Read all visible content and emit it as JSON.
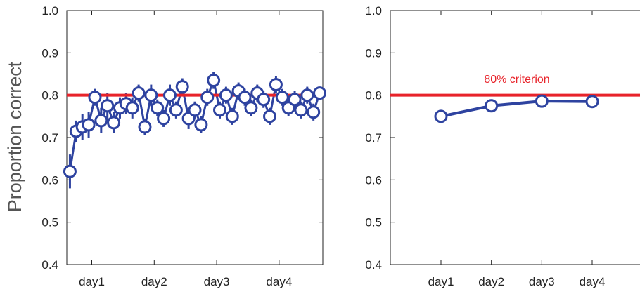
{
  "colors": {
    "data": "#2e43a0",
    "criterion": "#e8232a",
    "axis": "#222222"
  },
  "chart_data": [
    {
      "type": "line",
      "title": "",
      "xlabel": "",
      "ylabel": "Proportion correct",
      "ylim": [
        0.4,
        1.0
      ],
      "yticks": [
        "0.4",
        "0.5",
        "0.6",
        "0.7",
        "0.8",
        "0.9",
        "1.0"
      ],
      "xlim": [
        0.5,
        41.5
      ],
      "xticks": [
        {
          "x": 4.5,
          "label": "day1"
        },
        {
          "x": 14.5,
          "label": "day2"
        },
        {
          "x": 24.5,
          "label": "day3"
        },
        {
          "x": 34.5,
          "label": "day4"
        }
      ],
      "grid": false,
      "reference_line": {
        "y": 0.8
      },
      "series": [
        {
          "x": [
            1,
            2,
            3,
            4,
            5,
            6,
            7,
            8,
            9,
            10,
            11,
            12,
            13,
            14,
            15,
            16,
            17,
            18,
            19,
            20,
            21,
            22,
            23,
            24,
            25,
            26,
            27,
            28,
            29,
            30,
            31,
            32,
            33,
            34,
            35,
            36,
            37,
            38,
            39,
            40,
            41
          ],
          "values": [
            0.62,
            0.715,
            0.725,
            0.73,
            0.795,
            0.74,
            0.775,
            0.735,
            0.77,
            0.78,
            0.77,
            0.805,
            0.725,
            0.8,
            0.77,
            0.745,
            0.8,
            0.765,
            0.82,
            0.745,
            0.765,
            0.73,
            0.795,
            0.835,
            0.765,
            0.8,
            0.75,
            0.81,
            0.795,
            0.77,
            0.805,
            0.79,
            0.75,
            0.825,
            0.795,
            0.77,
            0.79,
            0.765,
            0.8,
            0.76,
            0.805
          ],
          "error": [
            0.04,
            0.025,
            0.03,
            0.03,
            0.02,
            0.03,
            0.03,
            0.025,
            0.025,
            0.025,
            0.025,
            0.02,
            0.02,
            0.025,
            0.02,
            0.02,
            0.025,
            0.02,
            0.02,
            0.025,
            0.02,
            0.02,
            0.02,
            0.02,
            0.02,
            0.02,
            0.02,
            0.02,
            0.02,
            0.02,
            0.02,
            0.02,
            0.02,
            0.02,
            0.02,
            0.02,
            0.02,
            0.02,
            0.02,
            0.02,
            0.015
          ]
        }
      ]
    },
    {
      "type": "line",
      "title": "",
      "xlabel": "",
      "ylabel": "",
      "ylim": [
        0.4,
        1.0
      ],
      "yticks": [
        "0.4",
        "0.5",
        "0.6",
        "0.7",
        "0.8",
        "0.9",
        "1.0"
      ],
      "categories": [
        "day1",
        "day2",
        "day3",
        "day4"
      ],
      "xlim": [
        0,
        5
      ],
      "grid": false,
      "reference_line": {
        "y": 0.8,
        "label": "80% criterion"
      },
      "series": [
        {
          "values": [
            0.75,
            0.775,
            0.786,
            0.785
          ],
          "error": [
            0.015,
            0.008,
            0.007,
            0.007
          ]
        }
      ]
    }
  ]
}
